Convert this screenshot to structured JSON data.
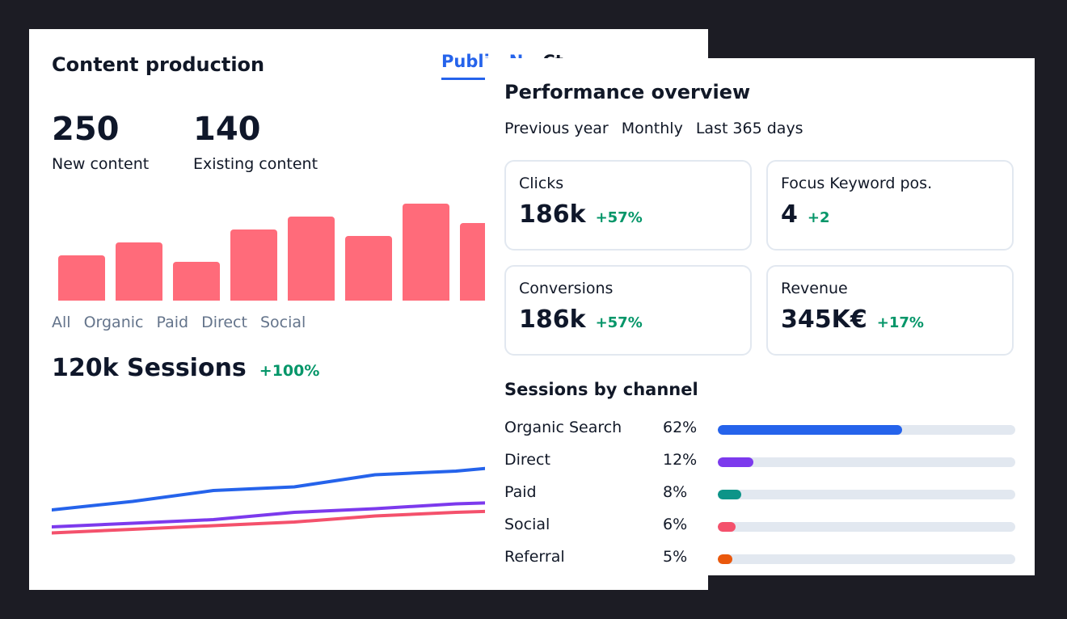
{
  "content_production": {
    "title": "Content production",
    "tabs": [
      {
        "label": "Publi"
      },
      {
        "label": "N"
      },
      {
        "label": "Ct"
      }
    ],
    "stats": [
      {
        "value": "250",
        "label": "New content"
      },
      {
        "value": "140",
        "label": "Existing content"
      }
    ],
    "bars": [
      0.47,
      0.6,
      0.4,
      0.73,
      0.87,
      0.67,
      1.0,
      0.8
    ],
    "bar_color": "#ff6b7a",
    "filters": [
      "All",
      "Organic",
      "Paid",
      "Direct",
      "Social"
    ],
    "sessions": {
      "value": "120k Sessions",
      "delta": "+100%"
    },
    "line_chart": {
      "series": [
        {
          "color": "#2563eb",
          "values": [
            30,
            37,
            46,
            49,
            59,
            62,
            68
          ]
        },
        {
          "color": "#7c3aed",
          "values": [
            16,
            19,
            22,
            28,
            31,
            35,
            37
          ]
        },
        {
          "color": "#f4516c",
          "values": [
            11,
            14,
            17,
            20,
            25,
            28,
            30
          ]
        }
      ]
    }
  },
  "performance": {
    "title": "Performance overview",
    "filters": [
      "Previous year",
      "Monthly",
      "Last 365 days"
    ],
    "metrics": [
      {
        "label": "Clicks",
        "value": "186k",
        "delta": "+57%"
      },
      {
        "label": "Focus Keyword pos.",
        "value": "4",
        "delta": "+2"
      },
      {
        "label": "Conversions",
        "value": "186k",
        "delta": "+57%"
      },
      {
        "label": "Revenue",
        "value": "345K€",
        "delta": "+17%"
      }
    ],
    "sessions_by_channel": {
      "title": "Sessions by channel",
      "channels": [
        {
          "name": "Organic Search",
          "percent": "62%",
          "fraction": 0.62,
          "color": "#2563eb"
        },
        {
          "name": "Direct",
          "percent": "12%",
          "fraction": 0.12,
          "color": "#7c3aed"
        },
        {
          "name": "Paid",
          "percent": "8%",
          "fraction": 0.08,
          "color": "#0d9488"
        },
        {
          "name": "Social",
          "percent": "6%",
          "fraction": 0.06,
          "color": "#f4516c"
        },
        {
          "name": "Referral",
          "percent": "5%",
          "fraction": 0.05,
          "color": "#ea580c"
        }
      ]
    }
  }
}
